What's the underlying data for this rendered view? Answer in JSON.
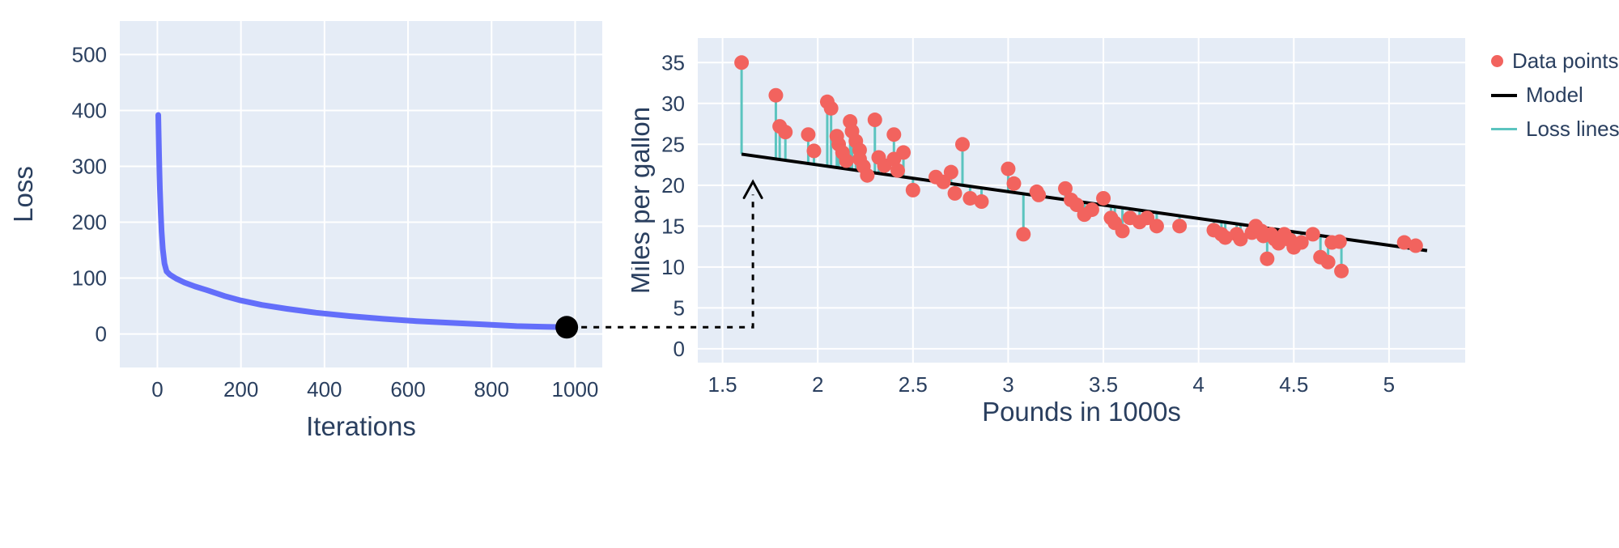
{
  "page": {
    "background": "#ffffff",
    "text_color": "#2a3f5f"
  },
  "chart_data": [
    {
      "id": "loss-curve",
      "type": "line",
      "title": "",
      "xlabel": "Iterations",
      "ylabel": "Loss",
      "xlim": [
        -90,
        1065
      ],
      "ylim": [
        -60,
        560
      ],
      "xticks": [
        0,
        200,
        400,
        600,
        800,
        1000
      ],
      "yticks": [
        0,
        100,
        200,
        300,
        400,
        500
      ],
      "grid": true,
      "plot_bg": "#E5ECF6",
      "line_color": "#636EFA",
      "line_width": 7,
      "x": [
        2,
        3,
        4,
        5,
        6,
        8,
        10,
        13,
        17,
        22,
        30,
        45,
        65,
        90,
        120,
        160,
        200,
        250,
        310,
        380,
        460,
        540,
        620,
        700,
        780,
        860,
        920,
        980
      ],
      "y": [
        392,
        355,
        320,
        288,
        260,
        216,
        184,
        152,
        126,
        112,
        106,
        99,
        92,
        85,
        78,
        68,
        60,
        52,
        45,
        38,
        32,
        27,
        23,
        20,
        17,
        14,
        13,
        12
      ],
      "endpoint": {
        "x": 980,
        "y": 12,
        "color": "#000000",
        "radius": 14
      }
    },
    {
      "id": "model-fit",
      "type": "scatter",
      "title": "",
      "xlabel": "Pounds in 1000s",
      "ylabel": "Miles per gallon",
      "xlim": [
        1.37,
        5.4
      ],
      "ylim": [
        -1.7,
        38
      ],
      "xticks": [
        1.5,
        2,
        2.5,
        3,
        3.5,
        4,
        4.5,
        5
      ],
      "yticks": [
        0,
        5,
        10,
        15,
        20,
        25,
        30,
        35
      ],
      "grid": true,
      "plot_bg": "#E5ECF6",
      "point_color": "#F2635E",
      "point_radius": 9,
      "model_color": "#000000",
      "model_line": {
        "x": [
          1.6,
          5.2
        ],
        "y": [
          23.8,
          12.0
        ]
      },
      "loss_line_color": "#5BC4BF",
      "points": [
        [
          1.6,
          35.0
        ],
        [
          1.78,
          31.0
        ],
        [
          1.8,
          27.2
        ],
        [
          1.83,
          26.5
        ],
        [
          1.95,
          26.2
        ],
        [
          1.98,
          24.2
        ],
        [
          2.05,
          30.2
        ],
        [
          2.07,
          29.4
        ],
        [
          2.1,
          26.0
        ],
        [
          2.11,
          25.0
        ],
        [
          2.13,
          24.0
        ],
        [
          2.15,
          23.0
        ],
        [
          2.17,
          27.8
        ],
        [
          2.18,
          26.6
        ],
        [
          2.2,
          25.4
        ],
        [
          2.22,
          24.3
        ],
        [
          2.22,
          23.2
        ],
        [
          2.24,
          22.3
        ],
        [
          2.26,
          21.2
        ],
        [
          2.3,
          28.0
        ],
        [
          2.32,
          23.4
        ],
        [
          2.35,
          22.4
        ],
        [
          2.4,
          26.2
        ],
        [
          2.4,
          23.2
        ],
        [
          2.42,
          21.8
        ],
        [
          2.45,
          24.0
        ],
        [
          2.5,
          19.4
        ],
        [
          2.62,
          21.0
        ],
        [
          2.66,
          20.4
        ],
        [
          2.7,
          21.6
        ],
        [
          2.72,
          19.0
        ],
        [
          2.76,
          25.0
        ],
        [
          2.8,
          18.4
        ],
        [
          2.86,
          18.0
        ],
        [
          3.0,
          22.0
        ],
        [
          3.03,
          20.2
        ],
        [
          3.08,
          14.0
        ],
        [
          3.15,
          19.2
        ],
        [
          3.16,
          18.8
        ],
        [
          3.3,
          19.6
        ],
        [
          3.33,
          18.2
        ],
        [
          3.36,
          17.6
        ],
        [
          3.4,
          16.4
        ],
        [
          3.44,
          17.0
        ],
        [
          3.5,
          18.4
        ],
        [
          3.54,
          16.0
        ],
        [
          3.56,
          15.4
        ],
        [
          3.6,
          14.4
        ],
        [
          3.64,
          16.0
        ],
        [
          3.69,
          15.5
        ],
        [
          3.73,
          16.0
        ],
        [
          3.78,
          15.0
        ],
        [
          3.9,
          15.0
        ],
        [
          4.08,
          14.5
        ],
        [
          4.12,
          14.0
        ],
        [
          4.14,
          13.6
        ],
        [
          4.2,
          14.0
        ],
        [
          4.22,
          13.4
        ],
        [
          4.28,
          14.2
        ],
        [
          4.3,
          15.0
        ],
        [
          4.33,
          14.4
        ],
        [
          4.34,
          13.8
        ],
        [
          4.36,
          11.0
        ],
        [
          4.38,
          14.0
        ],
        [
          4.4,
          13.4
        ],
        [
          4.42,
          12.9
        ],
        [
          4.45,
          14.0
        ],
        [
          4.48,
          13.3
        ],
        [
          4.5,
          12.4
        ],
        [
          4.54,
          13.0
        ],
        [
          4.6,
          14.0
        ],
        [
          4.64,
          11.2
        ],
        [
          4.68,
          10.6
        ],
        [
          4.7,
          13.0
        ],
        [
          4.74,
          13.1
        ],
        [
          4.75,
          9.5
        ],
        [
          5.08,
          13.0
        ],
        [
          5.14,
          12.6
        ]
      ]
    }
  ],
  "legend": {
    "position": "top-right-outside",
    "items": [
      {
        "label": "Data points",
        "marker": "dot",
        "color": "#F2635E"
      },
      {
        "label": "Model",
        "marker": "line",
        "color": "#000000"
      },
      {
        "label": "Loss lines",
        "marker": "line",
        "color": "#5BC4BF"
      }
    ]
  },
  "annotation": {
    "type": "dashed-arrow",
    "style": "dashed",
    "color": "#000000",
    "from": "final-loss-point",
    "to": "model-line-start"
  }
}
